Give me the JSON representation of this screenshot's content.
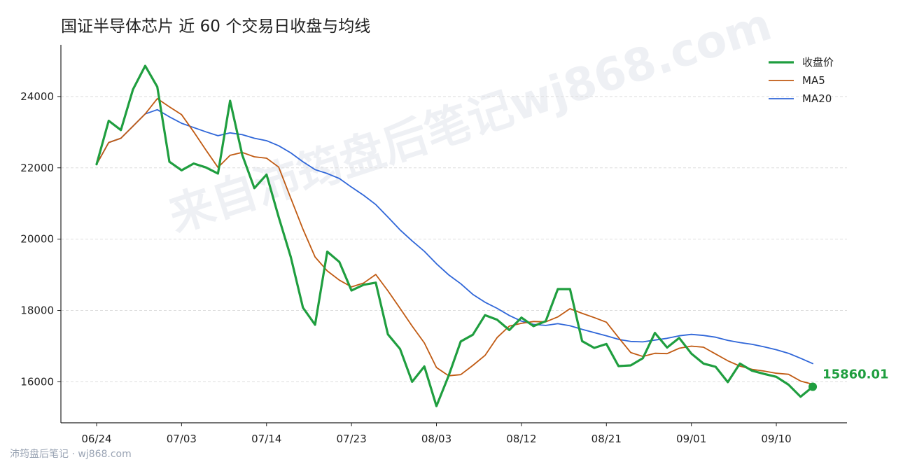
{
  "title": "国证半导体芯片 近 60 个交易日收盘与均线",
  "footer": "沛筠盘后笔记 · wj868.com",
  "watermark": "来自沛筠盘后笔记wj868.com",
  "colors": {
    "close": "#1f9e3f",
    "ma5": "#c05a12",
    "ma20": "#2f66d8",
    "grid": "#dddddd",
    "axis": "#222222"
  },
  "chart_data": {
    "type": "line",
    "x_tick_labels": [
      "06/24",
      "07/03",
      "07/14",
      "07/23",
      "08/03",
      "08/12",
      "08/21",
      "09/01",
      "09/10"
    ],
    "y_ticks": [
      16000,
      18000,
      20000,
      22000,
      24000
    ],
    "ylim": [
      14850,
      25450
    ],
    "grid": "horizontal",
    "legend_position": "top-right",
    "series": [
      {
        "name": "收盘价",
        "key": "close",
        "values": [
          22100,
          23320,
          23060,
          24200,
          24860,
          24270,
          22170,
          21930,
          22120,
          22010,
          21840,
          23880,
          22360,
          21430,
          21810,
          20620,
          19500,
          18080,
          17600,
          19650,
          19360,
          18560,
          18720,
          18780,
          17330,
          16920,
          16000,
          16430,
          15320,
          16170,
          17130,
          17320,
          17870,
          17740,
          17450,
          17800,
          17560,
          17700,
          18600,
          18600,
          17140,
          16950,
          17060,
          16440,
          16460,
          16660,
          17370,
          16960,
          17230,
          16790,
          16510,
          16420,
          15990,
          16510,
          16310,
          16220,
          16140,
          15920,
          15580,
          15860.01
        ]
      },
      {
        "name": "MA5",
        "key": "ma5",
        "values": [
          22100,
          22710,
          22830,
          23170,
          23510,
          23940,
          23710,
          23490,
          23010,
          22500,
          22010,
          22350,
          22430,
          22310,
          22270,
          22020,
          21150,
          20280,
          19500,
          19110,
          18850,
          18660,
          18770,
          19010,
          18550,
          18060,
          17560,
          17090,
          16400,
          16170,
          16200,
          16460,
          16740,
          17240,
          17560,
          17640,
          17690,
          17680,
          17820,
          18050,
          17920,
          17800,
          17670,
          17240,
          16820,
          16710,
          16800,
          16790,
          16940,
          17000,
          16970,
          16780,
          16590,
          16440,
          16350,
          16300,
          16240,
          16210,
          16020,
          15930
        ]
      },
      {
        "name": "MA20",
        "key": "ma20",
        "values": [
          22100,
          22710,
          22830,
          23170,
          23510,
          23630,
          23430,
          23250,
          23130,
          23010,
          22900,
          22980,
          22930,
          22830,
          22760,
          22620,
          22420,
          22170,
          21950,
          21840,
          21700,
          21460,
          21230,
          20970,
          20620,
          20260,
          19950,
          19660,
          19310,
          19000,
          18750,
          18450,
          18230,
          18060,
          17860,
          17700,
          17610,
          17580,
          17630,
          17570,
          17470,
          17380,
          17290,
          17190,
          17130,
          17120,
          17170,
          17220,
          17290,
          17330,
          17300,
          17250,
          17160,
          17100,
          17050,
          16980,
          16900,
          16800,
          16660,
          16510
        ]
      }
    ],
    "last_value_label": "15860.01"
  }
}
